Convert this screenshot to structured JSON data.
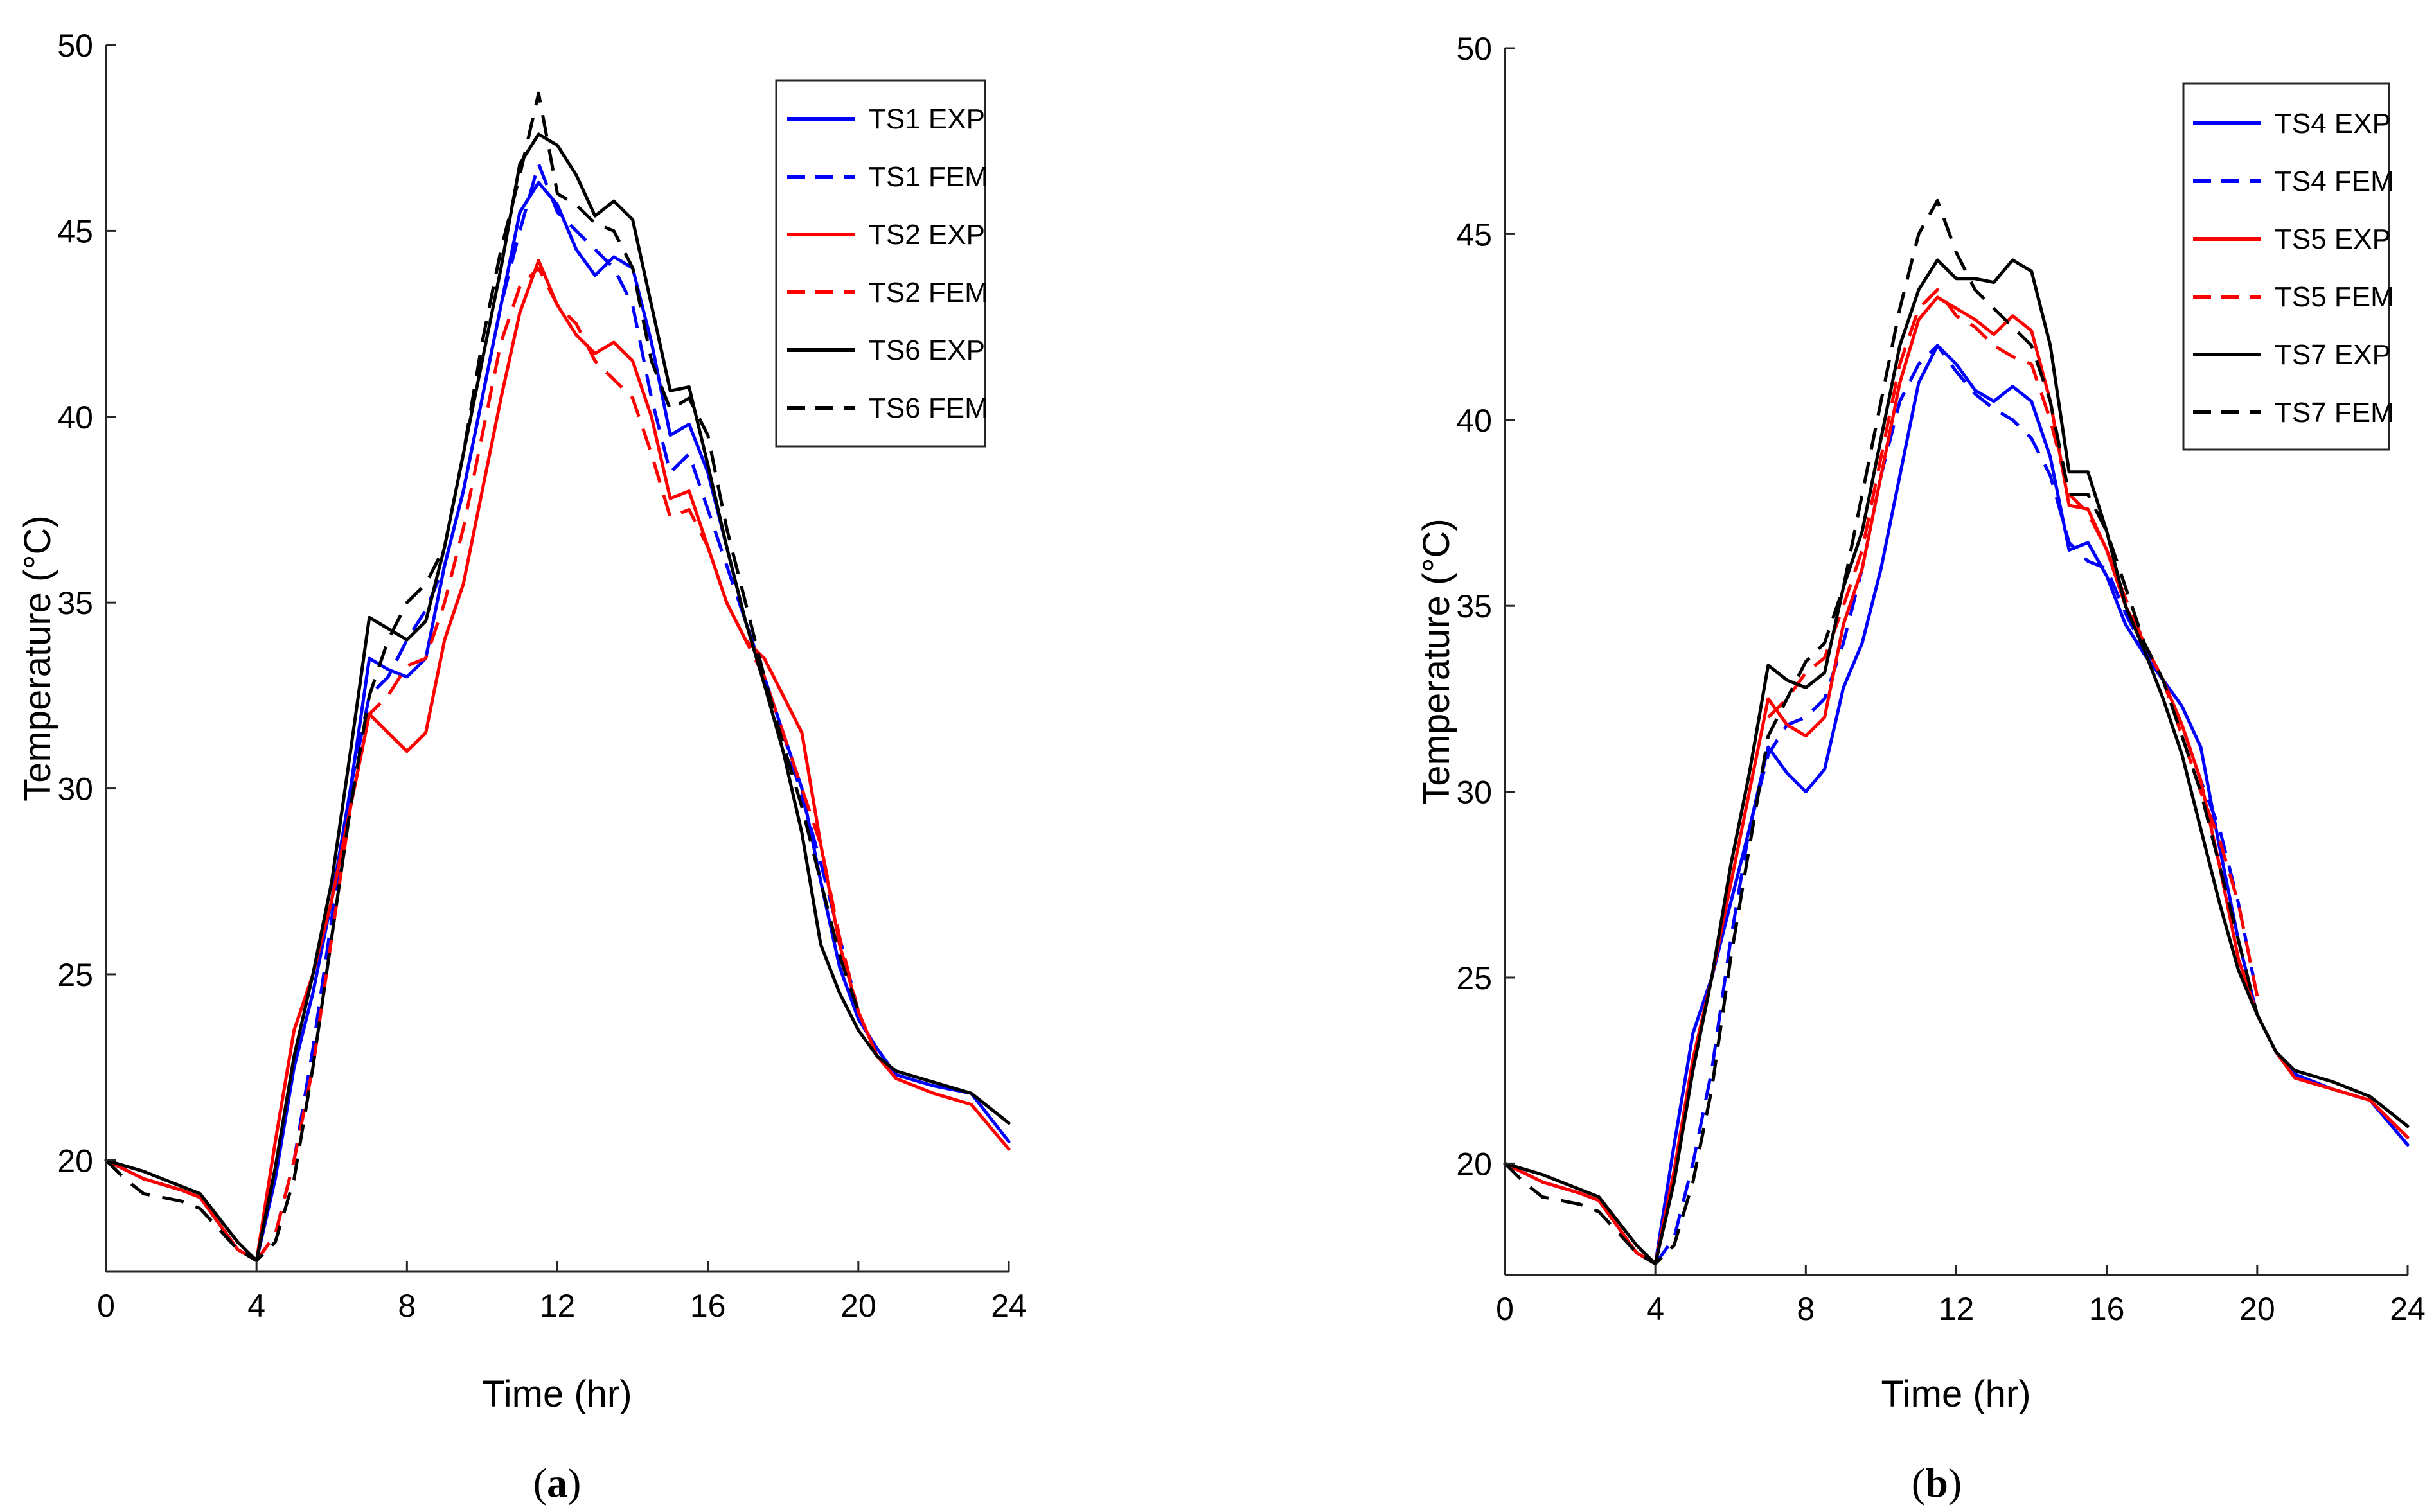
{
  "chart_data": [
    {
      "type": "line",
      "panel_label": "a",
      "xlabel": "Time (hr)",
      "ylabel": "Temperature (°C)",
      "xlim": [
        0,
        24
      ],
      "ylim": [
        17,
        50
      ],
      "xticks": [
        0,
        4,
        8,
        12,
        16,
        20,
        24
      ],
      "yticks": [
        20,
        25,
        30,
        35,
        40,
        45,
        50
      ],
      "grid": false,
      "legend_position": "top-right",
      "series": [
        {
          "name": "TS1 EXP",
          "color": "#0000ff",
          "style": "solid",
          "x": [
            0,
            1,
            2,
            2.5,
            3.5,
            4,
            4.5,
            5,
            5.5,
            6,
            6.5,
            7,
            7.5,
            8,
            8.5,
            9,
            9.5,
            10,
            10.5,
            11,
            11.5,
            12,
            12.5,
            13,
            13.5,
            14,
            14.5,
            15,
            15.5,
            16,
            16.5,
            17,
            17.5,
            18,
            18.5,
            19,
            19.5,
            20,
            20.5,
            21,
            22,
            23,
            24
          ],
          "y": [
            20,
            19.5,
            19.2,
            19,
            17.6,
            17.3,
            19.5,
            22.5,
            24.5,
            27,
            30,
            33.5,
            33.2,
            33,
            33.5,
            36,
            38,
            40.5,
            43,
            45.5,
            46.3,
            45.7,
            44.5,
            43.8,
            44.3,
            44,
            42,
            39.5,
            39.8,
            38.5,
            36.5,
            34.5,
            33,
            31.5,
            30,
            27.5,
            25.2,
            23.8,
            23,
            22.3,
            22,
            21.8,
            20.5
          ]
        },
        {
          "name": "TS1 FEM",
          "color": "#0000ff",
          "style": "dashed",
          "x": [
            4,
            4.5,
            5,
            5.5,
            6,
            6.5,
            7,
            7.5,
            8,
            8.5,
            9,
            9.5,
            10,
            10.5,
            11,
            11.5,
            12,
            12.5,
            13,
            13.5,
            14,
            14.5,
            15,
            15.5,
            16,
            16.5,
            17,
            17.5,
            18,
            18.5,
            19,
            19.5,
            20
          ],
          "y": [
            17.3,
            18,
            20,
            23,
            26.5,
            30,
            32.5,
            33,
            34,
            34.8,
            36,
            38,
            40.5,
            43,
            45,
            46.8,
            45.5,
            45,
            44.5,
            44,
            43,
            40.5,
            38.5,
            39,
            37.5,
            36,
            34.5,
            33,
            31.5,
            29.8,
            28,
            26,
            24
          ]
        },
        {
          "name": "TS2 EXP",
          "color": "#ff0000",
          "style": "solid",
          "x": [
            0,
            1,
            2,
            2.5,
            3.5,
            4,
            4.5,
            5,
            5.5,
            6,
            6.5,
            7,
            7.5,
            8,
            8.5,
            9,
            9.5,
            10,
            10.5,
            11,
            11.5,
            12,
            12.5,
            13,
            13.5,
            14,
            14.5,
            15,
            15.5,
            16,
            16.5,
            17,
            17.5,
            18,
            18.5,
            19,
            19.5,
            20,
            20.5,
            21,
            22,
            23,
            24
          ],
          "y": [
            20,
            19.5,
            19.2,
            19,
            17.6,
            17.3,
            20.5,
            23.5,
            25,
            27,
            29.5,
            32,
            31.5,
            31,
            31.5,
            34,
            35.5,
            38,
            40.5,
            42.8,
            44.2,
            43,
            42.2,
            41.7,
            42,
            41.5,
            40,
            37.8,
            38,
            36.5,
            35,
            34,
            33.5,
            32.5,
            31.5,
            28.5,
            25.8,
            24,
            22.8,
            22.2,
            21.8,
            21.5,
            20.3
          ]
        },
        {
          "name": "TS2 FEM",
          "color": "#ff0000",
          "style": "dashed",
          "x": [
            4,
            4.5,
            5,
            5.5,
            6,
            6.5,
            7,
            7.5,
            8,
            8.5,
            9,
            9.5,
            10,
            10.5,
            11,
            11.5,
            12,
            12.5,
            13,
            13.5,
            14,
            14.5,
            15,
            15.5,
            16,
            16.5,
            17,
            17.5,
            18,
            18.5,
            19,
            19.5,
            20
          ],
          "y": [
            17.3,
            18,
            20,
            22.5,
            26,
            29.5,
            32,
            32.5,
            33.3,
            33.5,
            35,
            37,
            39.5,
            42,
            43.5,
            44,
            43,
            42.5,
            41.5,
            41,
            40.5,
            39,
            37.3,
            37.5,
            36.5,
            35,
            34,
            33,
            31.5,
            30,
            28.5,
            26,
            24
          ]
        },
        {
          "name": "TS6 EXP",
          "color": "#000000",
          "style": "solid",
          "x": [
            0,
            1,
            2,
            2.5,
            3.5,
            4,
            4.5,
            5,
            5.5,
            6,
            6.5,
            7,
            7.5,
            8,
            8.5,
            9,
            9.5,
            10,
            10.5,
            11,
            11.5,
            12,
            12.5,
            13,
            13.5,
            14,
            14.5,
            15,
            15.5,
            16,
            16.5,
            17,
            17.5,
            18,
            18.5,
            19,
            19.5,
            20,
            20.5,
            21,
            22,
            23,
            24
          ],
          "y": [
            20,
            19.7,
            19.3,
            19.1,
            17.8,
            17.3,
            19.8,
            22.8,
            25,
            27.5,
            31,
            34.6,
            34.3,
            34,
            34.5,
            36.5,
            39,
            41.5,
            44,
            46.8,
            47.6,
            47.3,
            46.5,
            45.4,
            45.8,
            45.3,
            43,
            40.7,
            40.8,
            38.7,
            36.5,
            34.5,
            32.8,
            31,
            28.8,
            25.8,
            24.5,
            23.5,
            22.8,
            22.4,
            22.1,
            21.8,
            21
          ]
        },
        {
          "name": "TS6 FEM",
          "color": "#000000",
          "style": "dashed",
          "x": [
            0,
            0.5,
            1,
            2,
            2.5,
            3.5,
            4,
            4.5,
            5,
            5.5,
            6,
            6.5,
            7,
            7.5,
            8,
            8.5,
            9,
            9.5,
            10,
            10.5,
            11,
            11.5,
            12,
            12.5,
            13,
            13.5,
            14,
            14.5,
            15,
            15.5,
            16,
            16.5,
            17,
            17.5,
            18,
            18.5,
            19,
            19.5,
            20
          ],
          "y": [
            20,
            19.5,
            19.1,
            18.9,
            18.7,
            17.6,
            17.3,
            17.8,
            19.5,
            22.5,
            26,
            29.5,
            32.5,
            34,
            35,
            35.5,
            36.5,
            39,
            42,
            44.5,
            46.5,
            48.7,
            46,
            45.7,
            45.2,
            45,
            44,
            41.5,
            40.2,
            40.5,
            39.5,
            37,
            35,
            33,
            31.2,
            29.5,
            27.5,
            25.5,
            24
          ]
        }
      ]
    },
    {
      "type": "line",
      "panel_label": "b",
      "xlabel": "Time (hr)",
      "ylabel": "Temperature (°C)",
      "xlim": [
        0,
        24
      ],
      "ylim": [
        17,
        50
      ],
      "xticks": [
        0,
        4,
        8,
        12,
        16,
        20,
        24
      ],
      "yticks": [
        20,
        25,
        30,
        35,
        40,
        45,
        50
      ],
      "grid": false,
      "legend_position": "top-right",
      "series": [
        {
          "name": "TS4 EXP",
          "color": "#0000ff",
          "style": "solid",
          "x": [
            0,
            1,
            2,
            2.5,
            3.5,
            4,
            4.5,
            5,
            5.5,
            6,
            6.5,
            7,
            7.5,
            8,
            8.5,
            9,
            9.5,
            10,
            10.5,
            11,
            11.5,
            12,
            12.5,
            13,
            13.5,
            14,
            14.5,
            15,
            15.5,
            16,
            16.5,
            17,
            17.5,
            18,
            18.5,
            19,
            19.5,
            20,
            20.5,
            21,
            22,
            23,
            24
          ],
          "y": [
            20,
            19.5,
            19.2,
            19,
            17.6,
            17.3,
            20.5,
            23.5,
            25,
            27,
            29,
            31.2,
            30.5,
            30,
            30.6,
            32.8,
            34,
            36,
            38.5,
            41,
            42,
            41.5,
            40.8,
            40.5,
            40.9,
            40.5,
            39,
            36.5,
            36.7,
            35.8,
            34.5,
            33.7,
            33,
            32.3,
            31.2,
            28.5,
            26,
            24,
            23,
            22.4,
            22,
            21.7,
            20.5
          ]
        },
        {
          "name": "TS4 FEM",
          "color": "#0000ff",
          "style": "dashed",
          "x": [
            4,
            4.5,
            5,
            5.5,
            6,
            6.5,
            7,
            7.5,
            8,
            8.5,
            9,
            9.5,
            10,
            10.5,
            11,
            11.5,
            12,
            12.5,
            13,
            13.5,
            14,
            14.5,
            15,
            15.5,
            16,
            16.5,
            17,
            17.5,
            18,
            18.5,
            19,
            19.5,
            20
          ],
          "y": [
            17.3,
            18,
            20,
            22.5,
            26,
            29,
            31,
            31.8,
            32,
            32.5,
            34,
            36,
            38.5,
            40.5,
            41.5,
            42,
            41.3,
            40.7,
            40.3,
            40,
            39.5,
            38.5,
            36.7,
            36.2,
            36,
            34.8,
            33.8,
            33,
            31.8,
            30.3,
            29,
            27,
            24.5
          ]
        },
        {
          "name": "TS5 EXP",
          "color": "#ff0000",
          "style": "solid",
          "x": [
            0,
            1,
            2,
            2.5,
            3.5,
            4,
            4.5,
            5,
            5.5,
            6,
            6.5,
            7,
            7.5,
            8,
            8.5,
            9,
            9.5,
            10,
            10.5,
            11,
            11.5,
            12,
            12.5,
            13,
            13.5,
            14,
            14.5,
            15,
            15.5,
            16,
            16.5,
            17,
            17.5,
            18,
            18.5,
            19,
            19.5,
            20,
            20.5,
            21,
            22,
            23,
            24
          ],
          "y": [
            20,
            19.5,
            19.2,
            19,
            17.6,
            17.3,
            19.8,
            22.8,
            25,
            27.5,
            30,
            32.5,
            31.8,
            31.5,
            32,
            34.5,
            36,
            38.5,
            41,
            42.7,
            43.3,
            43,
            42.7,
            42.3,
            42.8,
            42.4,
            40.5,
            37.7,
            37.6,
            36.5,
            35,
            34,
            33,
            31.8,
            30.3,
            28,
            25.5,
            24,
            23,
            22.3,
            22,
            21.7,
            20.7
          ]
        },
        {
          "name": "TS5 FEM",
          "color": "#ff0000",
          "style": "dashed",
          "x": [
            7,
            7.5,
            8,
            8.5,
            9,
            9.5,
            10,
            10.5,
            11,
            11.5,
            12,
            12.5,
            13,
            13.5,
            14,
            14.5,
            15,
            15.5,
            16,
            16.5,
            17,
            17.5,
            18,
            18.5,
            19,
            19.5,
            20
          ],
          "y": [
            32,
            32.5,
            33.2,
            33.6,
            35,
            36.5,
            39,
            41.5,
            43,
            43.5,
            42.8,
            42.5,
            42,
            41.7,
            41.5,
            40,
            38,
            37.5,
            36.5,
            35.2,
            34,
            33,
            31.5,
            30,
            28.7,
            27,
            24.5
          ]
        },
        {
          "name": "TS7 EXP",
          "color": "#000000",
          "style": "solid",
          "x": [
            0,
            1,
            2,
            2.5,
            3.5,
            4,
            4.5,
            5,
            5.5,
            6,
            6.5,
            7,
            7.5,
            8,
            8.5,
            9,
            9.5,
            10,
            10.5,
            11,
            11.5,
            12,
            12.5,
            13,
            13.5,
            14,
            14.5,
            15,
            15.5,
            16,
            16.5,
            17,
            17.5,
            18,
            18.5,
            19,
            19.5,
            20,
            20.5,
            21,
            22,
            23,
            24
          ],
          "y": [
            20,
            19.7,
            19.3,
            19.1,
            17.8,
            17.3,
            19.5,
            22.5,
            25,
            28,
            30.5,
            33.4,
            33,
            32.8,
            33.2,
            35.5,
            37,
            39.5,
            42,
            43.5,
            44.3,
            43.8,
            43.8,
            43.7,
            44.3,
            44,
            42,
            38.6,
            38.6,
            37,
            35,
            33.8,
            32.5,
            31,
            29,
            27,
            25.2,
            24,
            23,
            22.5,
            22.2,
            21.8,
            21
          ]
        },
        {
          "name": "TS7 FEM",
          "color": "#000000",
          "style": "dashed",
          "x": [
            0,
            0.5,
            1,
            2,
            2.5,
            3.5,
            4,
            4.5,
            5,
            5.5,
            6,
            6.5,
            7,
            7.5,
            8,
            8.5,
            9,
            9.5,
            10,
            10.5,
            11,
            11.5,
            12,
            12.5,
            13,
            13.5,
            14,
            14.5,
            15,
            15.5,
            16,
            16.5,
            17,
            17.5,
            18,
            18.5,
            19,
            19.5,
            20
          ],
          "y": [
            20,
            19.5,
            19.1,
            18.9,
            18.7,
            17.6,
            17.3,
            17.8,
            19.5,
            22,
            25.5,
            28.5,
            31.5,
            32.5,
            33.5,
            34,
            35.5,
            38,
            40.5,
            43,
            45,
            45.9,
            44.5,
            43.5,
            43,
            42.5,
            42,
            40.5,
            38,
            38,
            37,
            35.5,
            34,
            33,
            31.5,
            30,
            28,
            26,
            24
          ]
        }
      ]
    }
  ]
}
